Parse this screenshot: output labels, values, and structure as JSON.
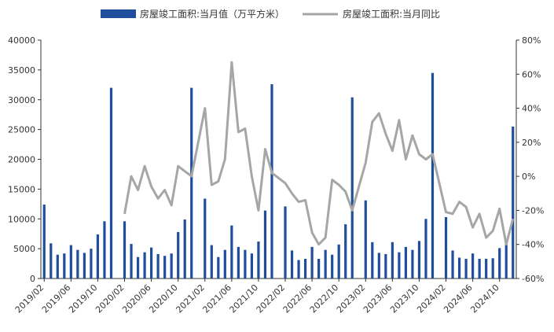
{
  "chart_data": {
    "type": "bar+line",
    "legend_position": "top",
    "series": [
      {
        "name": "房屋竣工面积:当月值（万平方米）",
        "type": "bar",
        "axis": "left",
        "color": "#1f4e9c",
        "values": [
          12400,
          5900,
          4000,
          4200,
          5600,
          4800,
          4300,
          5000,
          7400,
          9600,
          32000,
          null,
          9600,
          5800,
          3600,
          4400,
          5200,
          4100,
          3800,
          4200,
          7800,
          9900,
          32000,
          null,
          13400,
          5600,
          3600,
          4800,
          8900,
          5300,
          4800,
          4200,
          6200,
          11400,
          32600,
          null,
          12100,
          4700,
          3100,
          3300,
          5300,
          3300,
          4800,
          4000,
          5700,
          9100,
          30400,
          null,
          13100,
          6100,
          4300,
          4100,
          6100,
          4400,
          5300,
          4800,
          6300,
          10000,
          34500,
          null,
          10300,
          4700,
          3500,
          3300,
          4200,
          3300,
          3300,
          3400,
          5100,
          6200,
          25500
        ]
      },
      {
        "name": "房屋竣工面积:当月同比",
        "type": "line",
        "axis": "right",
        "color": "#a6a6a6",
        "values": [
          null,
          null,
          null,
          null,
          null,
          null,
          null,
          null,
          null,
          null,
          null,
          null,
          -22,
          0,
          -8,
          6,
          -6,
          -13,
          -8,
          -17,
          6,
          3,
          0,
          null,
          40,
          -5,
          -3,
          10,
          67,
          26,
          28,
          0,
          -20,
          16,
          2,
          null,
          -4,
          -10,
          -15,
          -14,
          -33,
          -40,
          -36,
          -2,
          -5,
          -9,
          -20,
          null,
          8,
          32,
          37,
          25,
          15,
          33,
          10,
          24,
          13,
          10,
          13,
          null,
          -21,
          -22,
          -15,
          -18,
          -30,
          -22,
          -36,
          -32,
          -19,
          -40,
          -25
        ]
      }
    ],
    "x_tick_labels": [
      "2019/02",
      "2019/06",
      "2019/10",
      "2020/02",
      "2020/06",
      "2020/10",
      "2021/02",
      "2021/06",
      "2021/10",
      "2022/02",
      "2022/06",
      "2022/10",
      "2023/02",
      "2023/06",
      "2023/10",
      "2024/02",
      "2024/06",
      "2024/10"
    ],
    "x_tick_slots": [
      0,
      4,
      8,
      12,
      16,
      20,
      24,
      28,
      32,
      36,
      40,
      44,
      48,
      52,
      56,
      60,
      64,
      68
    ],
    "y_left": {
      "range": [
        0,
        40000
      ],
      "ticks": [
        0,
        5000,
        10000,
        15000,
        20000,
        25000,
        30000,
        35000,
        40000
      ],
      "tick_labels": [
        "0",
        "5000",
        "10000",
        "15000",
        "20000",
        "25000",
        "30000",
        "35000",
        "40000"
      ]
    },
    "y_right": {
      "range": [
        -60,
        80
      ],
      "ticks": [
        -60,
        -40,
        -20,
        0,
        20,
        40,
        60,
        80
      ],
      "tick_labels": [
        "-60%",
        "-40%",
        "-20%",
        "0%",
        "20%",
        "40%",
        "60%",
        "80%"
      ]
    },
    "grid": false
  }
}
